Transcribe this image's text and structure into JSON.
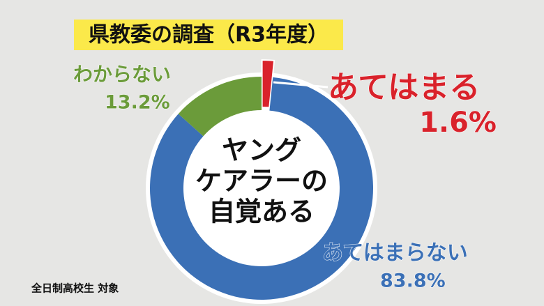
{
  "chart_data": {
    "type": "donut",
    "title": "県教委の調査（R3年度）",
    "center_text": [
      "ヤング",
      "ケアラーの",
      "自覚ある"
    ],
    "note": "全日制高校生 対象",
    "categories": [
      "あてはまる",
      "あてはまらない",
      "わからない"
    ],
    "values": [
      1.6,
      83.8,
      13.2
    ],
    "value_labels": [
      "1.6%",
      "83.8%",
      "13.2%"
    ],
    "colors": [
      "#d9222b",
      "#3b70b6",
      "#6b9b3a"
    ]
  }
}
